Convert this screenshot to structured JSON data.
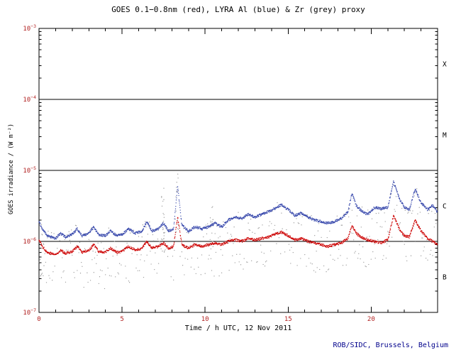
{
  "chart_data": {
    "type": "scatter",
    "title": "GOES 0.1−0.8nm (red), LYRA Al (blue) & Zr (grey) proxy",
    "xlabel": "Time / h UTC, 12 Nov 2011",
    "ylabel": "GOES irradiance / (W m⁻²)",
    "footer": "ROB/SIDC, Brussels, Belgium",
    "xlim": [
      0,
      24
    ],
    "x_major_ticks": [
      0,
      5,
      10,
      15,
      20
    ],
    "x_minor_step": 1,
    "y_scale": "log",
    "y_exponent_range": [
      -7,
      -3
    ],
    "flare_class_lines": [
      0.0001,
      1e-05,
      1e-06
    ],
    "flare_class_labels": [
      {
        "label": "X",
        "value": 0.000316
      },
      {
        "label": "M",
        "value": 3.16e-05
      },
      {
        "label": "C",
        "value": 3.16e-06
      },
      {
        "label": "B",
        "value": 3.16e-07
      }
    ],
    "colors": {
      "goes": "#cc0000",
      "lyra_al": "#3344aa",
      "lyra_zr": "#9a9a9a",
      "axis": "#000000",
      "tick_labels": "#b22222",
      "class_letters": "#000000",
      "title": "#000000",
      "footer": "#00008b"
    },
    "sample_step_h": 0.015,
    "jitter_decades": 0.018,
    "series": [
      {
        "name": "GOES 0.1−0.8nm",
        "color_key": "goes",
        "keypoints": [
          [
            0,
            1.05e-06
          ],
          [
            0.2,
            8.5e-07
          ],
          [
            0.5,
            7e-07
          ],
          [
            1.0,
            6.5e-07
          ],
          [
            1.3,
            7.5e-07
          ],
          [
            1.6,
            6.8e-07
          ],
          [
            2.0,
            7.2e-07
          ],
          [
            2.3,
            8.5e-07
          ],
          [
            2.6,
            7e-07
          ],
          [
            3.0,
            7.5e-07
          ],
          [
            3.3,
            9e-07
          ],
          [
            3.6,
            7.2e-07
          ],
          [
            4.0,
            7e-07
          ],
          [
            4.3,
            8e-07
          ],
          [
            4.7,
            7e-07
          ],
          [
            5.0,
            7.2e-07
          ],
          [
            5.4,
            8.5e-07
          ],
          [
            5.8,
            7.5e-07
          ],
          [
            6.2,
            8e-07
          ],
          [
            6.5,
            1e-06
          ],
          [
            6.8,
            8e-07
          ],
          [
            7.2,
            8.5e-07
          ],
          [
            7.5,
            9.5e-07
          ],
          [
            7.8,
            8e-07
          ],
          [
            8.1,
            8.5e-07
          ],
          [
            8.35,
            2.2e-06
          ],
          [
            8.6,
            9e-07
          ],
          [
            9.0,
            8e-07
          ],
          [
            9.4,
            9e-07
          ],
          [
            9.8,
            8.5e-07
          ],
          [
            10.2,
            9e-07
          ],
          [
            10.6,
            9.5e-07
          ],
          [
            11.0,
            9e-07
          ],
          [
            11.4,
            1e-06
          ],
          [
            11.8,
            1.05e-06
          ],
          [
            12.2,
            1e-06
          ],
          [
            12.6,
            1.1e-06
          ],
          [
            13.0,
            1.05e-06
          ],
          [
            13.4,
            1.1e-06
          ],
          [
            13.8,
            1.15e-06
          ],
          [
            14.2,
            1.25e-06
          ],
          [
            14.6,
            1.35e-06
          ],
          [
            15.0,
            1.2e-06
          ],
          [
            15.4,
            1.05e-06
          ],
          [
            15.8,
            1.1e-06
          ],
          [
            16.2,
            1e-06
          ],
          [
            16.6,
            9.5e-07
          ],
          [
            17.0,
            9e-07
          ],
          [
            17.4,
            8.5e-07
          ],
          [
            17.8,
            9e-07
          ],
          [
            18.2,
            9.5e-07
          ],
          [
            18.6,
            1.1e-06
          ],
          [
            18.85,
            1.7e-06
          ],
          [
            19.1,
            1.3e-06
          ],
          [
            19.4,
            1.15e-06
          ],
          [
            19.8,
            1.05e-06
          ],
          [
            20.2,
            1e-06
          ],
          [
            20.6,
            9.5e-07
          ],
          [
            21.0,
            1.05e-06
          ],
          [
            21.35,
            2.3e-06
          ],
          [
            21.7,
            1.5e-06
          ],
          [
            22.0,
            1.2e-06
          ],
          [
            22.3,
            1.15e-06
          ],
          [
            22.65,
            2e-06
          ],
          [
            23.0,
            1.4e-06
          ],
          [
            23.4,
            1.1e-06
          ],
          [
            23.7,
            1e-06
          ],
          [
            24,
            9e-07
          ]
        ]
      },
      {
        "name": "LYRA Al proxy",
        "color_key": "lyra_al",
        "keypoints": [
          [
            0,
            1.9e-06
          ],
          [
            0.2,
            1.5e-06
          ],
          [
            0.5,
            1.2e-06
          ],
          [
            1.0,
            1.1e-06
          ],
          [
            1.3,
            1.3e-06
          ],
          [
            1.6,
            1.15e-06
          ],
          [
            2.0,
            1.25e-06
          ],
          [
            2.3,
            1.5e-06
          ],
          [
            2.6,
            1.2e-06
          ],
          [
            3.0,
            1.3e-06
          ],
          [
            3.3,
            1.6e-06
          ],
          [
            3.6,
            1.25e-06
          ],
          [
            4.0,
            1.2e-06
          ],
          [
            4.3,
            1.4e-06
          ],
          [
            4.7,
            1.2e-06
          ],
          [
            5.0,
            1.25e-06
          ],
          [
            5.4,
            1.5e-06
          ],
          [
            5.8,
            1.3e-06
          ],
          [
            6.2,
            1.4e-06
          ],
          [
            6.5,
            1.9e-06
          ],
          [
            6.8,
            1.4e-06
          ],
          [
            7.2,
            1.5e-06
          ],
          [
            7.5,
            1.8e-06
          ],
          [
            7.8,
            1.4e-06
          ],
          [
            8.1,
            1.5e-06
          ],
          [
            8.35,
            6e-06
          ],
          [
            8.6,
            1.7e-06
          ],
          [
            9.0,
            1.4e-06
          ],
          [
            9.4,
            1.6e-06
          ],
          [
            9.8,
            1.5e-06
          ],
          [
            10.2,
            1.6e-06
          ],
          [
            10.6,
            1.8e-06
          ],
          [
            11.0,
            1.6e-06
          ],
          [
            11.4,
            2e-06
          ],
          [
            11.8,
            2.2e-06
          ],
          [
            12.2,
            2.1e-06
          ],
          [
            12.6,
            2.4e-06
          ],
          [
            13.0,
            2.2e-06
          ],
          [
            13.4,
            2.4e-06
          ],
          [
            13.8,
            2.6e-06
          ],
          [
            14.2,
            2.9e-06
          ],
          [
            14.6,
            3.3e-06
          ],
          [
            15.0,
            2.8e-06
          ],
          [
            15.4,
            2.3e-06
          ],
          [
            15.8,
            2.5e-06
          ],
          [
            16.2,
            2.2e-06
          ],
          [
            16.6,
            2e-06
          ],
          [
            17.0,
            1.9e-06
          ],
          [
            17.4,
            1.8e-06
          ],
          [
            17.8,
            1.9e-06
          ],
          [
            18.2,
            2.1e-06
          ],
          [
            18.6,
            2.6e-06
          ],
          [
            18.85,
            4.8e-06
          ],
          [
            19.1,
            3.2e-06
          ],
          [
            19.4,
            2.7e-06
          ],
          [
            19.8,
            2.4e-06
          ],
          [
            20.2,
            3e-06
          ],
          [
            20.6,
            2.9e-06
          ],
          [
            21.0,
            3e-06
          ],
          [
            21.35,
            7e-06
          ],
          [
            21.7,
            4e-06
          ],
          [
            22.0,
            3e-06
          ],
          [
            22.3,
            2.8e-06
          ],
          [
            22.65,
            5.5e-06
          ],
          [
            23.0,
            3.5e-06
          ],
          [
            23.4,
            2.8e-06
          ],
          [
            23.7,
            3.2e-06
          ],
          [
            24,
            2.6e-06
          ]
        ]
      },
      {
        "name": "LYRA Zr proxy",
        "color_key": "lyra_zr",
        "derived_from": "LYRA Al proxy",
        "scatter_decades": [
          -0.75,
          0.08
        ],
        "sample_step_h": 0.05,
        "skip_fraction": 0.12,
        "clusters": [
          {
            "t": 7.45,
            "spread": 0.12,
            "n": 22,
            "lo": -0.4,
            "hi": 0.55
          },
          {
            "t": 10.4,
            "spread": 0.1,
            "n": 16,
            "lo": -0.4,
            "hi": 0.3
          },
          {
            "t": 8.3,
            "spread": 0.1,
            "n": 14,
            "lo": -0.6,
            "hi": 0.2
          },
          {
            "t": 0.15,
            "spread": 0.15,
            "n": 12,
            "lo": -0.7,
            "hi": 0.1
          }
        ]
      }
    ]
  }
}
